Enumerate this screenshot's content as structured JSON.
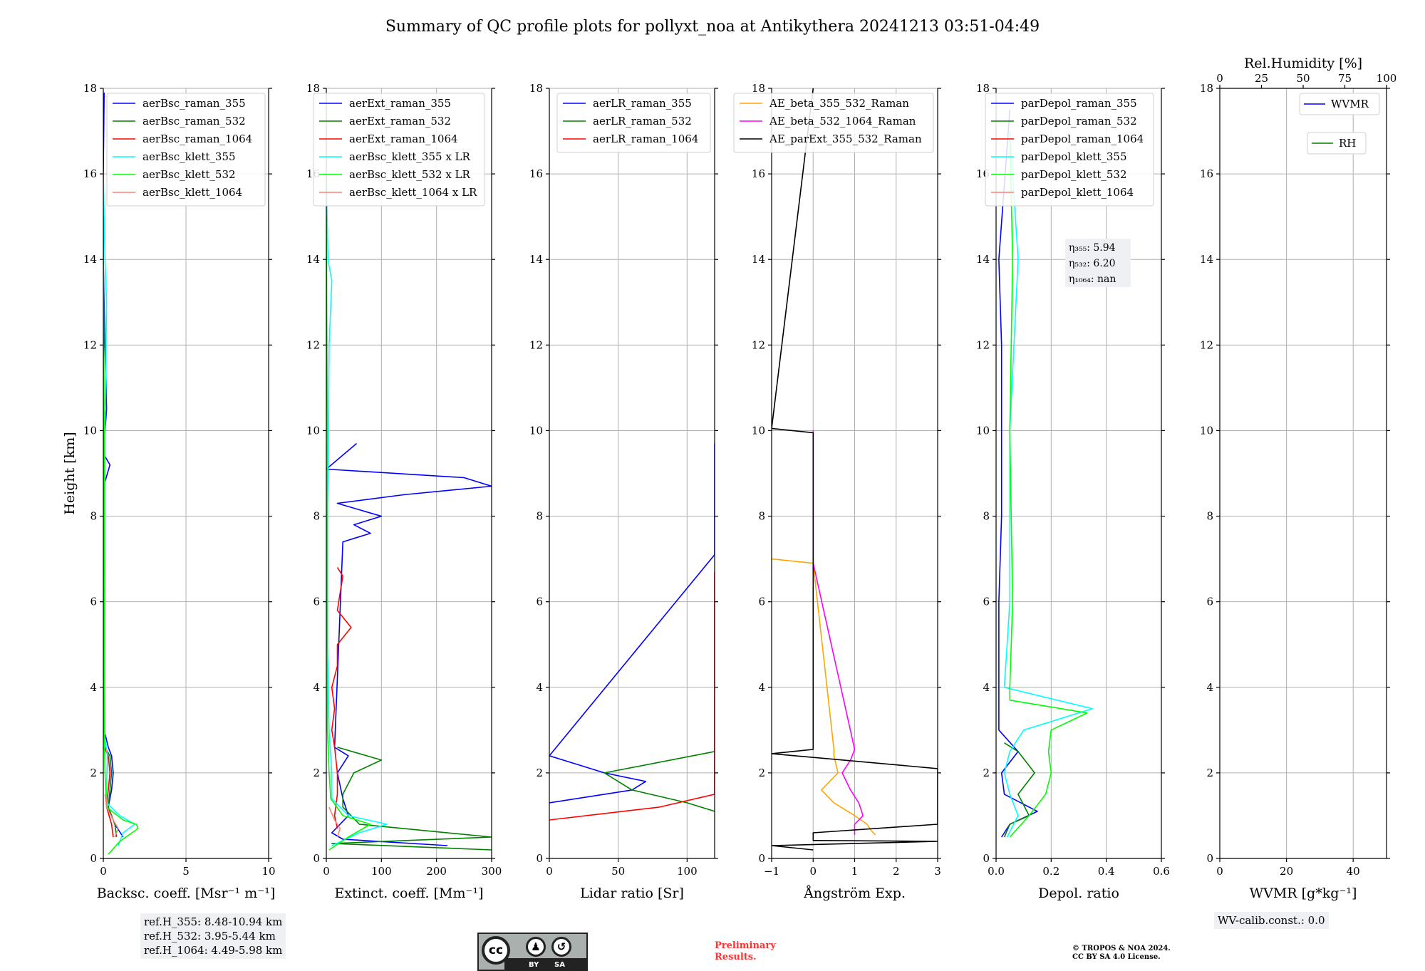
{
  "title": "Summary of QC profile plots for pollyxt_noa at Antikythera 20241213 03:51-04:49",
  "colors": {
    "blue": "#0000ff",
    "green": "#008000",
    "red": "#ff0000",
    "cyan": "#00ffff",
    "lime": "#00ff00",
    "salmon": "#fa8072",
    "orange": "#ffa500",
    "magenta": "#ff00ff",
    "black": "#000000",
    "grid": "#b0b0b0"
  },
  "chart_data": [
    {
      "type": "line",
      "id": "bsc",
      "xlabel": "Backsc. coeff. [Msr⁻¹ m⁻¹]",
      "ylabel": "Height [km]",
      "xlim": [
        0,
        10
      ],
      "ylim": [
        0,
        18
      ],
      "xticks": [
        0,
        5,
        10
      ],
      "xticklabels": [
        "0",
        "5",
        "10"
      ],
      "yticks": [
        0,
        2,
        4,
        6,
        8,
        10,
        12,
        14,
        16,
        18
      ],
      "legend": [
        "aerBsc_raman_355",
        "aerBsc_raman_532",
        "aerBsc_raman_1064",
        "aerBsc_klett_355",
        "aerBsc_klett_532",
        "aerBsc_klett_1064"
      ],
      "legend_colors": [
        "blue",
        "green",
        "red",
        "cyan",
        "lime",
        "salmon"
      ],
      "series": [
        {
          "name": "aerBsc_raman_355",
          "color": "blue",
          "y": [
            0.5,
            0.8,
            1.2,
            1.6,
            2.0,
            2.4,
            2.6,
            3.0,
            5.0,
            7.0,
            8.8,
            9.2,
            9.4,
            9.7,
            10.5,
            12.0,
            14.0,
            16.0,
            17.9
          ],
          "x": [
            1.2,
            0.7,
            0.3,
            0.5,
            0.6,
            0.5,
            0.3,
            0.05,
            0.0,
            0.05,
            0.1,
            0.4,
            0.1,
            0.05,
            0.2,
            0.1,
            0.0,
            0.0,
            0.05
          ]
        },
        {
          "name": "aerBsc_raman_532",
          "color": "green",
          "y": [
            0.5,
            0.8,
            1.2,
            1.6,
            2.0,
            2.4,
            2.6
          ],
          "x": [
            0.8,
            0.7,
            0.3,
            0.4,
            0.5,
            0.4,
            0.1
          ]
        },
        {
          "name": "aerBsc_raman_1064",
          "color": "red",
          "y": [
            0.5,
            0.8,
            1.2,
            1.6,
            2.0,
            2.4,
            2.6
          ],
          "x": [
            0.6,
            0.5,
            0.2,
            0.3,
            0.4,
            0.3,
            0.05
          ]
        },
        {
          "name": "aerBsc_klett_355",
          "color": "cyan",
          "y": [
            0.3,
            0.6,
            0.8,
            1.0,
            1.3,
            1.8,
            2.4,
            2.8,
            4.0,
            7.0,
            10.0,
            13.0,
            14.0,
            16.0
          ],
          "x": [
            0.9,
            1.2,
            1.9,
            1.0,
            0.2,
            0.2,
            0.25,
            0.1,
            0.05,
            0.1,
            0.1,
            0.2,
            0.1,
            0.0
          ]
        },
        {
          "name": "aerBsc_klett_532",
          "color": "lime",
          "y": [
            0.1,
            0.4,
            0.7,
            0.8,
            0.9,
            1.2,
            2.0,
            3.0,
            6.0,
            10.0,
            15.0
          ],
          "x": [
            0.3,
            1.0,
            2.1,
            2.0,
            1.2,
            0.2,
            0.1,
            0.05,
            0.05,
            0.05,
            0.0
          ]
        },
        {
          "name": "aerBsc_klett_1064",
          "color": "salmon",
          "y": [
            0.5,
            0.7,
            0.9,
            1.2,
            1.5
          ],
          "x": [
            0.7,
            0.9,
            0.6,
            0.2,
            0.1
          ]
        }
      ]
    },
    {
      "type": "line",
      "id": "ext",
      "xlabel": "Extinct. coeff. [Mm⁻¹]",
      "ylabel": "",
      "xlim": [
        0,
        300
      ],
      "ylim": [
        0,
        18
      ],
      "xticks": [
        0,
        100,
        200,
        300
      ],
      "xticklabels": [
        "0",
        "100",
        "200",
        "300"
      ],
      "yticks": [
        0,
        2,
        4,
        6,
        8,
        10,
        12,
        14,
        16,
        18
      ],
      "legend": [
        "aerExt_raman_355",
        "aerExt_raman_532",
        "aerExt_raman_1064",
        "aerBsc_klett_355 x LR",
        "aerBsc_klett_532 x LR",
        "aerBsc_klett_1064 x LR"
      ],
      "legend_colors": [
        "blue",
        "green",
        "red",
        "cyan",
        "lime",
        "salmon"
      ],
      "series": [
        {
          "name": "aerExt_raman_355",
          "color": "blue",
          "y": [
            0.3,
            0.45,
            0.6,
            1.0,
            1.4,
            2.0,
            2.4,
            2.6,
            7.4,
            7.6,
            7.8,
            8.0,
            8.3,
            8.5,
            8.7,
            8.9,
            9.1,
            9.7
          ],
          "x": [
            220,
            30,
            10,
            40,
            30,
            20,
            40,
            15,
            30,
            80,
            50,
            100,
            20,
            140,
            300,
            250,
            0,
            55
          ]
        },
        {
          "name": "aerExt_raman_532",
          "color": "green",
          "y": [
            0.2,
            0.35,
            0.5,
            0.8,
            1.2,
            1.5,
            2.0,
            2.3,
            2.6
          ],
          "x": [
            300,
            10,
            300,
            60,
            30,
            30,
            50,
            100,
            20
          ]
        },
        {
          "name": "aerExt_raman_1064",
          "color": "red",
          "y": [
            0.7,
            1.0,
            1.5,
            2.0,
            2.6,
            3.0,
            3.5,
            4.0,
            4.5,
            5.0,
            5.4,
            5.8,
            6.2,
            6.6,
            6.8
          ],
          "x": [
            20,
            15,
            20,
            20,
            15,
            10,
            15,
            10,
            20,
            20,
            45,
            20,
            25,
            30,
            20
          ]
        },
        {
          "name": "aerBsc_klett_355 x LR",
          "color": "cyan",
          "y": [
            0.3,
            0.6,
            0.8,
            1.0,
            1.4,
            2.0,
            3.0,
            5.0,
            8.0,
            10.0,
            12.0,
            13.5,
            14.0,
            16.0
          ],
          "x": [
            10,
            60,
            110,
            40,
            10,
            10,
            5,
            2,
            2,
            4,
            5,
            10,
            3,
            0
          ]
        },
        {
          "name": "aerBsc_klett_532 x LR",
          "color": "lime",
          "y": [
            0.2,
            0.5,
            0.8,
            1.0,
            1.4,
            2.0,
            3.0,
            6.0,
            10.0,
            15.0
          ],
          "x": [
            5,
            40,
            80,
            30,
            8,
            5,
            2,
            2,
            2,
            0
          ]
        },
        {
          "name": "aerBsc_klett_1064 x LR",
          "color": "salmon",
          "y": [
            0.5,
            0.7,
            0.9,
            1.2
          ],
          "x": [
            20,
            25,
            15,
            5
          ]
        }
      ]
    },
    {
      "type": "line",
      "id": "lr",
      "xlabel": "Lidar ratio [Sr]",
      "ylabel": "",
      "xlim": [
        0,
        120
      ],
      "ylim": [
        0,
        18
      ],
      "xticks": [
        0,
        50,
        100
      ],
      "xticklabels": [
        "0",
        "50",
        "100"
      ],
      "yticks": [
        0,
        2,
        4,
        6,
        8,
        10,
        12,
        14,
        16,
        18
      ],
      "legend": [
        "aerLR_raman_355",
        "aerLR_raman_532",
        "aerLR_raman_1064"
      ],
      "legend_colors": [
        "blue",
        "green",
        "red"
      ],
      "series": [
        {
          "name": "aerLR_raman_355",
          "color": "blue",
          "y": [
            1.3,
            1.6,
            1.8,
            2.0,
            2.2,
            2.4,
            7.1,
            7.3,
            7.5,
            7.8,
            8.1,
            8.4,
            8.7,
            9.1,
            9.5,
            9.7
          ],
          "x": [
            0,
            60,
            70,
            40,
            20,
            0,
            120,
            120,
            120,
            120,
            120,
            120,
            120,
            120,
            120,
            120
          ]
        },
        {
          "name": "aerLR_raman_532",
          "color": "green",
          "y": [
            1.1,
            1.3,
            1.6,
            2.0,
            2.5
          ],
          "x": [
            120,
            100,
            60,
            40,
            120
          ]
        },
        {
          "name": "aerLR_raman_1064",
          "color": "red",
          "y": [
            0.9,
            1.2,
            1.5,
            2.0,
            2.5,
            3.0,
            3.5,
            4.0,
            4.3,
            4.7,
            5.1,
            5.8,
            6.2,
            6.5,
            6.7
          ],
          "x": [
            0,
            80,
            120,
            120,
            120,
            120,
            120,
            120,
            120,
            120,
            120,
            120,
            120,
            120,
            120
          ]
        }
      ]
    },
    {
      "type": "line",
      "id": "ae",
      "xlabel": "Ångström Exp.",
      "ylabel": "",
      "xlim": [
        -1,
        3
      ],
      "ylim": [
        0,
        18
      ],
      "xticks": [
        -1,
        0,
        1,
        2,
        3
      ],
      "xticklabels": [
        "−1",
        "0",
        "1",
        "2",
        "3"
      ],
      "yticks": [
        0,
        2,
        4,
        6,
        8,
        10,
        12,
        14,
        16,
        18
      ],
      "legend": [
        "AE_beta_355_532_Raman",
        "AE_beta_532_1064_Raman",
        "AE_parExt_355_532_Raman"
      ],
      "legend_colors": [
        "orange",
        "magenta",
        "black"
      ],
      "series": [
        {
          "name": "AE_beta_355_532_Raman",
          "color": "orange",
          "y": [
            0.55,
            0.65,
            0.8,
            1.0,
            1.3,
            1.6,
            2.0,
            2.4,
            2.55,
            6.9,
            7.0
          ],
          "x": [
            1.5,
            1.4,
            1.3,
            1.0,
            0.5,
            0.2,
            0.6,
            0.5,
            0.5,
            0.0,
            -1.0
          ]
        },
        {
          "name": "AE_beta_532_1064_Raman",
          "color": "magenta",
          "y": [
            0.55,
            0.8,
            1.0,
            1.3,
            1.6,
            2.0,
            2.3,
            2.55,
            6.9,
            10.0
          ],
          "x": [
            1.0,
            1.0,
            1.2,
            1.1,
            0.9,
            0.7,
            0.9,
            1.0,
            0.0,
            0.0
          ]
        },
        {
          "name": "AE_parExt_355_532_Raman",
          "color": "black",
          "y": [
            0.2,
            0.3,
            0.4,
            0.42,
            0.6,
            0.8,
            1.6,
            2.1,
            2.45,
            2.55,
            9.95,
            10.05,
            18.0
          ],
          "x": [
            0.0,
            -1.0,
            3.0,
            0.0,
            0.0,
            3.0,
            3.0,
            3.0,
            -1.0,
            0.0,
            0.0,
            -1.0,
            0.0
          ]
        }
      ]
    },
    {
      "type": "line",
      "id": "dep",
      "xlabel": "Depol. ratio",
      "ylabel": "",
      "xlim": [
        0,
        0.6
      ],
      "ylim": [
        0,
        18
      ],
      "xticks": [
        0,
        0.2,
        0.4,
        0.6
      ],
      "xticklabels": [
        "0.0",
        "0.2",
        "0.4",
        "0.6"
      ],
      "yticks": [
        0,
        2,
        4,
        6,
        8,
        10,
        12,
        14,
        16,
        18
      ],
      "legend": [
        "parDepol_raman_355",
        "parDepol_raman_532",
        "parDepol_raman_1064",
        "parDepol_klett_355",
        "parDepol_klett_532",
        "parDepol_klett_1064"
      ],
      "legend_colors": [
        "blue",
        "green",
        "red",
        "cyan",
        "lime",
        "salmon"
      ],
      "annotation": [
        "η₃₅₅: 5.94",
        "η₅₃₂: 6.20",
        "η₁₀₆₄: nan"
      ],
      "series": [
        {
          "name": "parDepol_raman_355",
          "color": "blue",
          "y": [
            0.5,
            0.8,
            1.1,
            1.5,
            2.0,
            2.5,
            3.0,
            6.0,
            8.0,
            10.0,
            12.0,
            14.0,
            17.5
          ],
          "x": [
            0.02,
            0.05,
            0.15,
            0.03,
            0.02,
            0.08,
            0.01,
            0.01,
            0.02,
            0.02,
            0.02,
            0.01,
            0.05
          ]
        },
        {
          "name": "parDepol_raman_532",
          "color": "green",
          "y": [
            0.5,
            0.8,
            1.0,
            1.5,
            2.0,
            2.5,
            2.7
          ],
          "x": [
            0.03,
            0.05,
            0.12,
            0.08,
            0.14,
            0.08,
            0.03
          ]
        },
        {
          "name": "parDepol_klett_355",
          "color": "cyan",
          "y": [
            0.5,
            1.0,
            1.5,
            2.0,
            2.5,
            3.0,
            3.5,
            4.0,
            6.0,
            10.0,
            14.0,
            17.0
          ],
          "x": [
            0.04,
            0.08,
            0.05,
            0.03,
            0.05,
            0.1,
            0.35,
            0.03,
            0.05,
            0.05,
            0.08,
            0.05
          ]
        },
        {
          "name": "parDepol_klett_532",
          "color": "lime",
          "y": [
            0.5,
            1.0,
            1.5,
            2.0,
            2.5,
            3.0,
            3.4,
            3.7,
            4.0,
            6.0,
            10.0,
            14.0,
            17.0
          ],
          "x": [
            0.05,
            0.12,
            0.18,
            0.2,
            0.19,
            0.2,
            0.33,
            0.05,
            0.05,
            0.06,
            0.05,
            0.06,
            0.05
          ]
        }
      ]
    },
    {
      "type": "line",
      "id": "wv",
      "xlabel": "WVMR [g*kg⁻¹]",
      "ylabel": "",
      "xlim": [
        0,
        50
      ],
      "ylim": [
        0,
        18
      ],
      "xticks": [
        0,
        20,
        40
      ],
      "xticklabels": [
        "0",
        "20",
        "40"
      ],
      "yticks": [
        0,
        2,
        4,
        6,
        8,
        10,
        12,
        14,
        16,
        18
      ],
      "top_axis": {
        "label": "Rel.Humidity [%]",
        "ticks": [
          0,
          25,
          50,
          75,
          100
        ],
        "lim": [
          0,
          100
        ]
      },
      "legend": [
        "WVMR",
        "RH"
      ],
      "legend_colors": [
        "blue",
        "green"
      ],
      "series": []
    }
  ],
  "ref_box": [
    "ref.H_355: 8.48-10.94 km",
    "ref.H_532: 3.95-5.44 km",
    "ref.H_1064: 4.49-5.98 km"
  ],
  "wv_calib": "WV-calib.const.: 0.0",
  "preliminary": [
    "Preliminary",
    "Results."
  ],
  "copyright": [
    "© TROPOS & NOA 2024.",
    "CC BY SA 4.0 License."
  ],
  "cc_badge": {
    "cc": "cc",
    "by": "BY",
    "sa": "SA"
  }
}
